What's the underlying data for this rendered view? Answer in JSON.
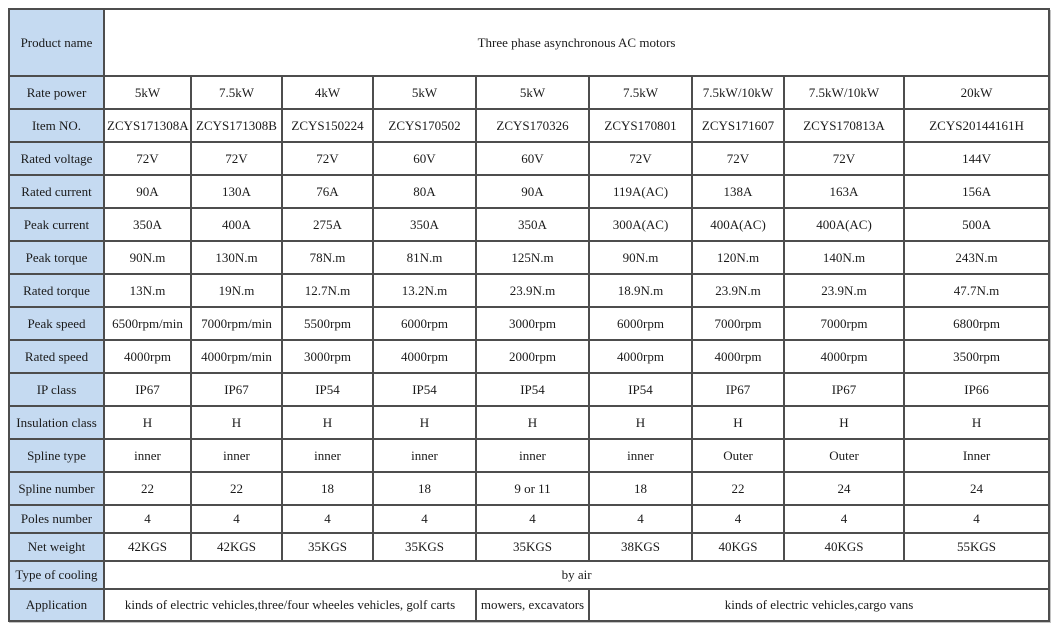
{
  "table": {
    "title_label": "Product name",
    "title_value": "Three phase asynchronous AC motors",
    "rows": [
      {
        "label": "Rate power",
        "values": [
          "5kW",
          "7.5kW",
          "4kW",
          "5kW",
          "5kW",
          "7.5kW",
          "7.5kW/10kW",
          "7.5kW/10kW",
          "20kW"
        ]
      },
      {
        "label": "Item NO.",
        "values": [
          "ZCYS171308A",
          "ZCYS171308B",
          "ZCYS150224",
          "ZCYS170502",
          "ZCYS170326",
          "ZCYS170801",
          "ZCYS171607",
          "ZCYS170813A",
          "ZCYS20144161H"
        ]
      },
      {
        "label": "Rated voltage",
        "values": [
          "72V",
          "72V",
          "72V",
          "60V",
          "60V",
          "72V",
          "72V",
          "72V",
          "144V"
        ]
      },
      {
        "label": "Rated current",
        "values": [
          "90A",
          "130A",
          "76A",
          "80A",
          "90A",
          "119A(AC)",
          "138A",
          "163A",
          "156A"
        ]
      },
      {
        "label": "Peak current",
        "values": [
          "350A",
          "400A",
          "275A",
          "350A",
          "350A",
          "300A(AC)",
          "400A(AC)",
          "400A(AC)",
          "500A"
        ]
      },
      {
        "label": "Peak torque",
        "values": [
          "90N.m",
          "130N.m",
          "78N.m",
          "81N.m",
          "125N.m",
          "90N.m",
          "120N.m",
          "140N.m",
          "243N.m"
        ]
      },
      {
        "label": "Rated torque",
        "values": [
          "13N.m",
          "19N.m",
          "12.7N.m",
          "13.2N.m",
          "23.9N.m",
          "18.9N.m",
          "23.9N.m",
          "23.9N.m",
          "47.7N.m"
        ]
      },
      {
        "label": "Peak speed",
        "values": [
          "6500rpm/min",
          "7000rpm/min",
          "5500rpm",
          "6000rpm",
          "3000rpm",
          "6000rpm",
          "7000rpm",
          "7000rpm",
          "6800rpm"
        ]
      },
      {
        "label": "Rated speed",
        "values": [
          "4000rpm",
          "4000rpm/min",
          "3000rpm",
          "4000rpm",
          "2000rpm",
          "4000rpm",
          "4000rpm",
          "4000rpm",
          "3500rpm"
        ]
      },
      {
        "label": "IP class",
        "values": [
          "IP67",
          "IP67",
          "IP54",
          "IP54",
          "IP54",
          "IP54",
          "IP67",
          "IP67",
          "IP66"
        ]
      },
      {
        "label": "Insulation class",
        "values": [
          "H",
          "H",
          "H",
          "H",
          "H",
          "H",
          "H",
          "H",
          "H"
        ]
      },
      {
        "label": "Spline type",
        "values": [
          "inner",
          "inner",
          "inner",
          "inner",
          "inner",
          "inner",
          "Outer",
          "Outer",
          "Inner"
        ]
      },
      {
        "label": "Spline number",
        "values": [
          "22",
          "22",
          "18",
          "18",
          "9 or 11",
          "18",
          "22",
          "24",
          "24"
        ]
      },
      {
        "label": "Poles number",
        "values": [
          "4",
          "4",
          "4",
          "4",
          "4",
          "4",
          "4",
          "4",
          "4"
        ]
      },
      {
        "label": "Net weight",
        "values": [
          "42KGS",
          "42KGS",
          "35KGS",
          "35KGS",
          "35KGS",
          "38KGS",
          "40KGS",
          "40KGS",
          "55KGS"
        ]
      }
    ],
    "short_rows_from_index": 13,
    "cooling": {
      "label": "Type of cooling",
      "value": "by air"
    },
    "application": {
      "label": "Application",
      "segments": [
        {
          "text": "kinds of electric vehicles,three/four wheeles vehicles, golf carts",
          "span": 4
        },
        {
          "text": "mowers, excavators",
          "span": 1
        },
        {
          "text": "kinds of electric vehicles,cargo vans",
          "span": 4
        }
      ]
    },
    "colors": {
      "label_background": "#c5daf1",
      "cell_border": "#4d4d4d",
      "text": "#1a1a1a",
      "page_background": "#ffffff"
    }
  }
}
